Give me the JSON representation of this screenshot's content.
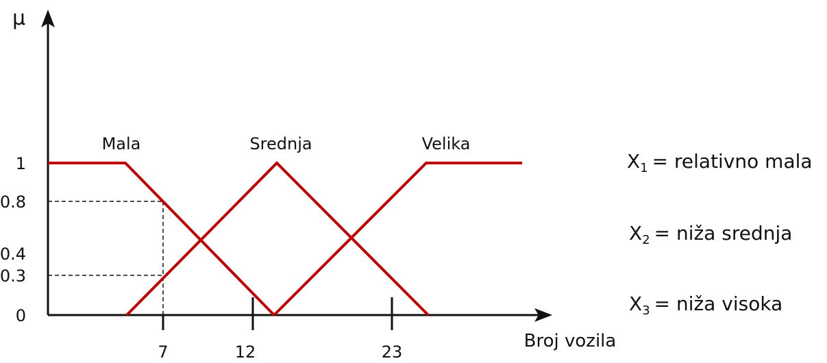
{
  "axes": {
    "y_label": "μ",
    "x_label": "Broj vozila"
  },
  "y_ticks": [
    "1",
    "0.8",
    "0.4",
    "0.3",
    "0"
  ],
  "x_ticks": [
    "7",
    "12",
    "23"
  ],
  "sets": [
    "Mala",
    "Srednja",
    "Velika"
  ],
  "legend": [
    {
      "var": "X",
      "sub": "1",
      "text": "= relativno mala"
    },
    {
      "var": "X",
      "sub": "2",
      "text": "= niža srednja"
    },
    {
      "var": "X",
      "sub": "3",
      "text": "= niža visoka"
    }
  ]
}
